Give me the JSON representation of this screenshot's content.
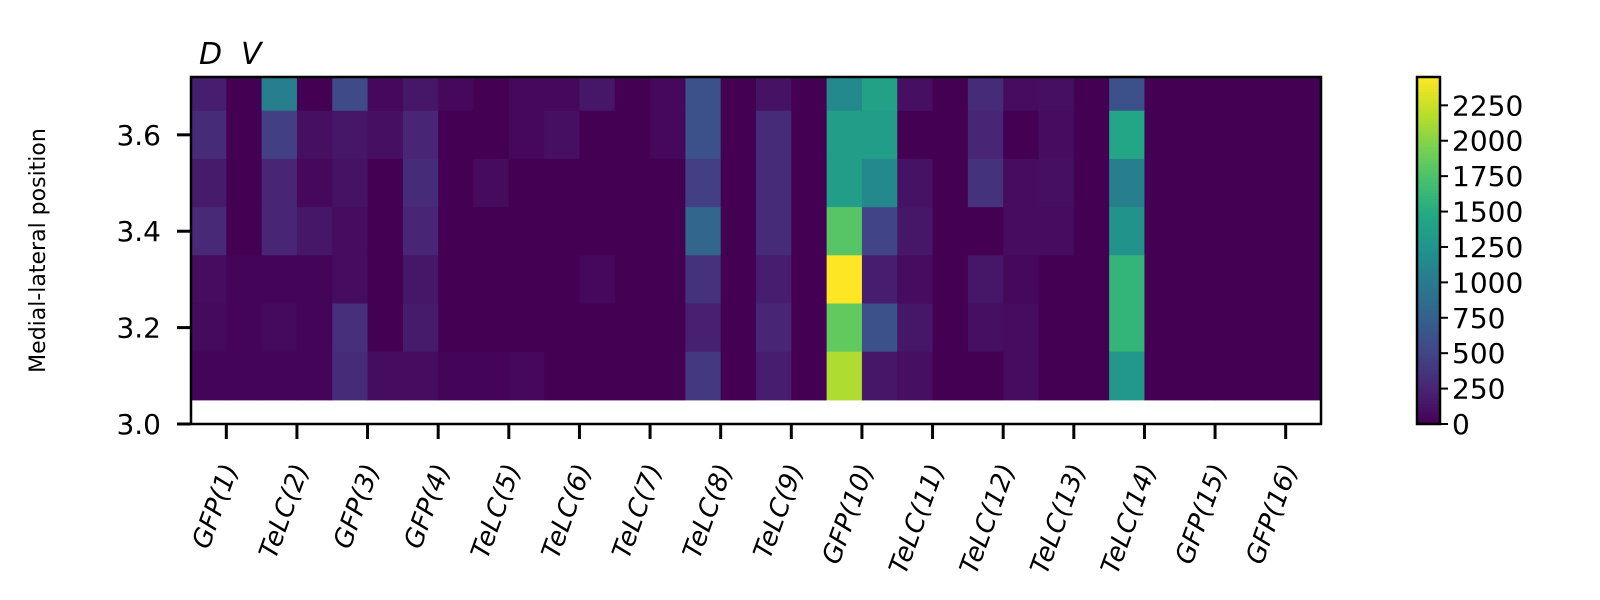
{
  "chart_data": {
    "type": "heatmap",
    "title_left": "D",
    "title_right": "V",
    "ylabel": "Medial-lateral position",
    "xlabel": "",
    "x_categories": [
      "GFP(1)",
      "TeLC(2)",
      "GFP(3)",
      "GFP(4)",
      "TeLC(5)",
      "TeLC(6)",
      "TeLC(7)",
      "TeLC(8)",
      "TeLC(9)",
      "GFP(10)",
      "TeLC(11)",
      "TeLC(12)",
      "TeLC(13)",
      "TeLC(14)",
      "GFP(15)",
      "GFP(16)"
    ],
    "half_columns": 2,
    "row_positions": [
      3.7,
      3.6,
      3.5,
      3.4,
      3.3,
      3.2,
      3.1
    ],
    "y_ticks": [
      3.0,
      3.2,
      3.4,
      3.6
    ],
    "y_tick_labels": [
      "3.0",
      "3.2",
      "3.4",
      "3.6"
    ],
    "ylim": [
      3.0,
      3.72
    ],
    "colorbar": {
      "min": 0,
      "max": 2450,
      "ticks": [
        0,
        250,
        500,
        750,
        1000,
        1250,
        1500,
        1750,
        2000,
        2250
      ],
      "tick_labels": [
        "0",
        "250",
        "500",
        "750",
        "1000",
        "1250",
        "1500",
        "1750",
        "2000",
        "2250"
      ],
      "colormap": "viridis"
    },
    "values": [
      [
        200,
        0,
        1050,
        0,
        550,
        50,
        150,
        50,
        0,
        50,
        50,
        150,
        0,
        50,
        600,
        0,
        120,
        0,
        1150,
        1400,
        100,
        0,
        300,
        80,
        100,
        0,
        600,
        0,
        0,
        0,
        0,
        0
      ],
      [
        300,
        0,
        450,
        100,
        150,
        100,
        250,
        0,
        0,
        50,
        100,
        0,
        0,
        50,
        600,
        0,
        300,
        0,
        1350,
        1350,
        0,
        0,
        250,
        0,
        80,
        0,
        1450,
        0,
        0,
        0,
        0,
        0
      ],
      [
        180,
        0,
        250,
        50,
        120,
        0,
        300,
        0,
        70,
        0,
        0,
        0,
        0,
        0,
        450,
        0,
        300,
        0,
        1350,
        1150,
        120,
        0,
        350,
        80,
        100,
        0,
        1050,
        0,
        0,
        0,
        0,
        0
      ],
      [
        280,
        0,
        250,
        150,
        80,
        0,
        250,
        0,
        0,
        0,
        0,
        0,
        0,
        0,
        800,
        0,
        300,
        0,
        1800,
        500,
        150,
        0,
        0,
        80,
        80,
        0,
        1250,
        0,
        0,
        0,
        0,
        0
      ],
      [
        80,
        30,
        30,
        30,
        80,
        0,
        150,
        0,
        0,
        0,
        0,
        50,
        0,
        0,
        350,
        0,
        200,
        0,
        2450,
        200,
        80,
        0,
        150,
        50,
        0,
        0,
        1600,
        0,
        0,
        0,
        0,
        0
      ],
      [
        60,
        30,
        60,
        30,
        330,
        0,
        180,
        0,
        0,
        0,
        0,
        0,
        0,
        0,
        220,
        0,
        250,
        0,
        1850,
        600,
        150,
        0,
        100,
        80,
        0,
        0,
        1600,
        0,
        0,
        0,
        0,
        0
      ],
      [
        30,
        30,
        30,
        30,
        300,
        80,
        80,
        30,
        30,
        50,
        0,
        0,
        0,
        0,
        400,
        0,
        200,
        0,
        2150,
        150,
        100,
        0,
        0,
        80,
        0,
        0,
        1300,
        0,
        0,
        0,
        0,
        0
      ]
    ]
  }
}
